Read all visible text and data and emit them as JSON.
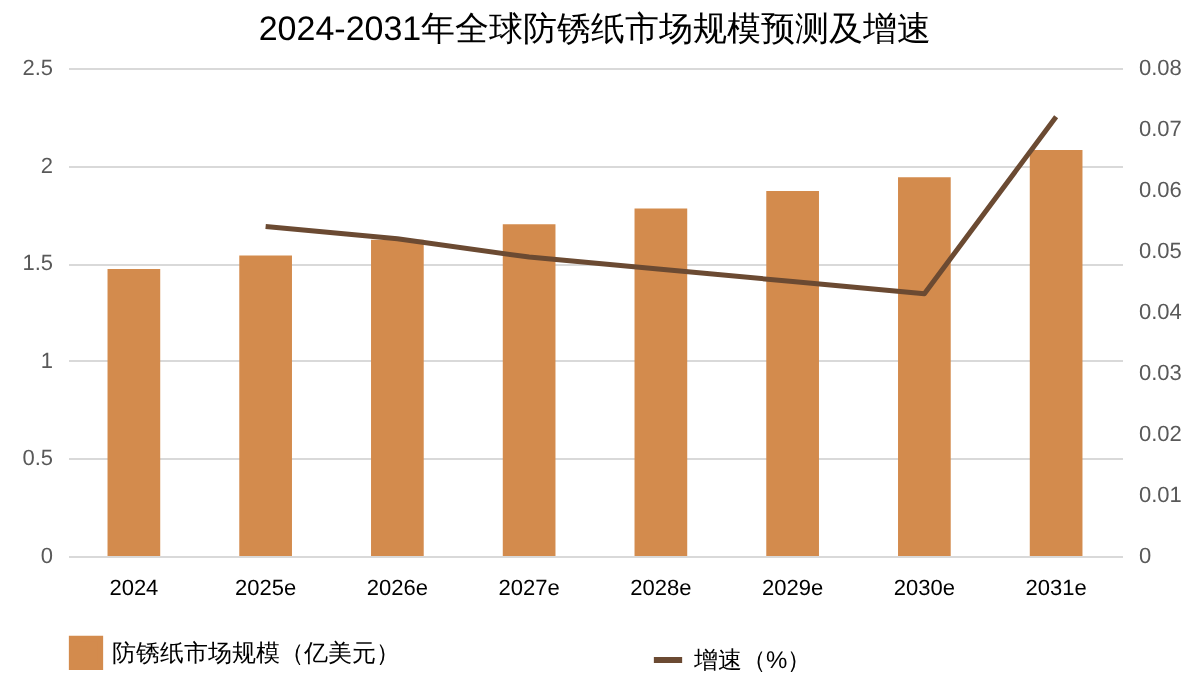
{
  "chart_data": {
    "type": "bar",
    "title": "2024-2031年全球防锈纸市场规模预测及增速",
    "categories": [
      "2024",
      "2025e",
      "2026e",
      "2027e",
      "2028e",
      "2029e",
      "2030e",
      "2031e"
    ],
    "series": [
      {
        "name": "防锈纸市场规模（亿美元）",
        "type": "bar",
        "color": "#d38b4d",
        "values": [
          1.47,
          1.54,
          1.62,
          1.7,
          1.78,
          1.87,
          1.94,
          2.08
        ]
      },
      {
        "name": "增速（%）",
        "type": "line",
        "axis": "y2",
        "color": "#6b4a32",
        "values": [
          null,
          0.054,
          0.052,
          0.049,
          0.047,
          0.045,
          0.043,
          0.072
        ]
      }
    ],
    "ylim": [
      0,
      2.5
    ],
    "yticks": [
      0,
      0.5,
      1,
      1.5,
      2,
      2.5
    ],
    "y2lim": [
      0,
      0.08
    ],
    "y2ticks": [
      0,
      0.01,
      0.02,
      0.03,
      0.04,
      0.05,
      0.06,
      0.07,
      0.08
    ],
    "grid": "y",
    "legend": "bottom",
    "marker": "none",
    "line_style": "solid"
  }
}
